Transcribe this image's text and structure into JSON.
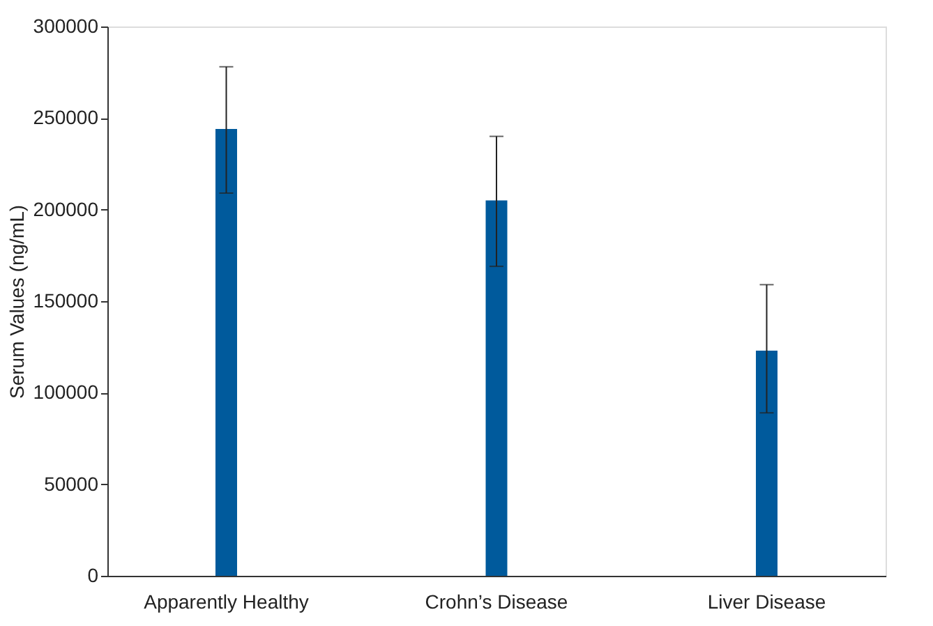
{
  "chart_data": {
    "type": "bar",
    "ylabel": "Serum Values (ng/mL)",
    "categories": [
      "Apparently Healthy",
      "Crohn’s Disease",
      "Liver Disease"
    ],
    "values": [
      244000,
      205000,
      123000
    ],
    "errors": [
      [
        209000,
        278000
      ],
      [
        169000,
        240000
      ],
      [
        89000,
        159000
      ]
    ],
    "color": "#005a9c",
    "ylim": [
      0,
      300000
    ],
    "yticks": [
      0,
      50000,
      100000,
      150000,
      200000,
      250000,
      300000
    ],
    "grid": false
  }
}
